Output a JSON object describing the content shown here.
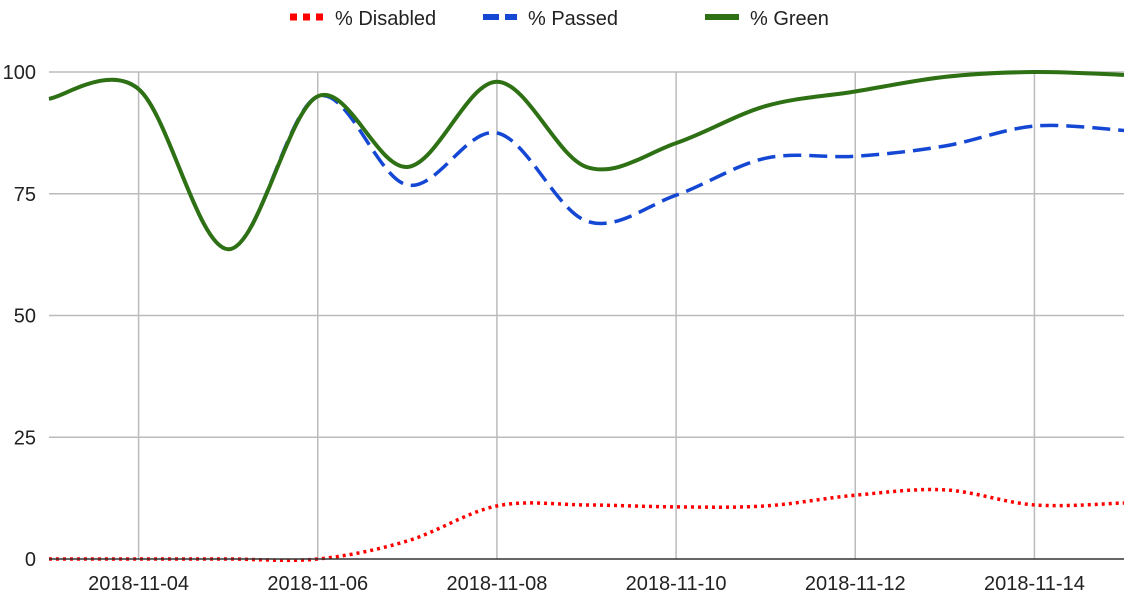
{
  "chart_data": {
    "type": "line",
    "title": "",
    "xlabel": "",
    "ylabel": "",
    "x": [
      "2018-11-03",
      "2018-11-04",
      "2018-11-05",
      "2018-11-06",
      "2018-11-07",
      "2018-11-08",
      "2018-11-09",
      "2018-11-10",
      "2018-11-11",
      "2018-11-12",
      "2018-11-13",
      "2018-11-14",
      "2018-11-15"
    ],
    "x_ticks": [
      "2018-11-04",
      "2018-11-06",
      "2018-11-08",
      "2018-11-10",
      "2018-11-12",
      "2018-11-14"
    ],
    "y_ticks": [
      0,
      25,
      50,
      75,
      100
    ],
    "ylim": [
      0,
      100
    ],
    "grid": true,
    "legend": "top",
    "series": [
      {
        "name": "% Disabled",
        "color": "#ff0000",
        "style": "dotted",
        "values": [
          0,
          0,
          0,
          0,
          3.7,
          10.9,
          11.1,
          10.7,
          10.9,
          13.1,
          14.2,
          11.1,
          11.5
        ]
      },
      {
        "name": "% Passed",
        "color": "#1448d4",
        "style": "dashed",
        "values": [
          94.5,
          96.5,
          63.6,
          95,
          76.8,
          87.5,
          69.4,
          74.7,
          82.3,
          82.7,
          84.8,
          88.9,
          88
        ]
      },
      {
        "name": "% Green",
        "color": "#2e7014",
        "style": "solid",
        "values": [
          94.5,
          96.5,
          63.6,
          95,
          80.5,
          98,
          80.5,
          85.4,
          93,
          96,
          99,
          100,
          99.4
        ]
      }
    ]
  }
}
